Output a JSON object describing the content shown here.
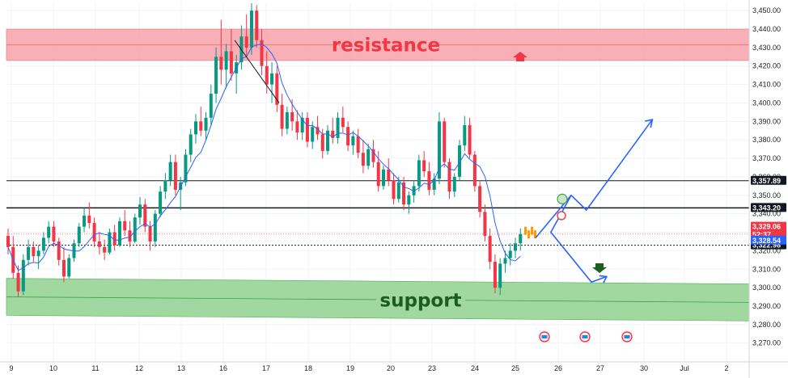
{
  "chart_data": {
    "type": "candlestick",
    "title": "",
    "ylim": [
      3262,
      3454
    ],
    "y_ticks": [
      3270,
      3280,
      3290,
      3300,
      3310,
      3320,
      3330,
      3340,
      3350,
      3360,
      3370,
      3380,
      3390,
      3400,
      3410,
      3420,
      3430,
      3440,
      3450
    ],
    "y_tick_labels": [
      "3,270.00",
      "3,280.00",
      "3,290.00",
      "3,300.00",
      "3,310.00",
      "3,320.00",
      "3,330.00",
      "3,340.00",
      "3,350.00",
      "3,360.00",
      "3,370.00",
      "3,380.00",
      "3,390.00",
      "3,400.00",
      "3,410.00",
      "3,420.00",
      "3,430.00",
      "3,440.00",
      "3,450.00"
    ],
    "x_ticks": [
      "9",
      "10",
      "11",
      "12",
      "13",
      "16",
      "17",
      "18",
      "19",
      "20",
      "23",
      "24",
      "25",
      "26",
      "27",
      "30",
      "Jul",
      "2"
    ],
    "grid": true,
    "colors": {
      "up": "#089981",
      "down": "#f23645",
      "ma": "#2962ff",
      "resistance": "#f7a1a8",
      "support": "#8fd18f"
    },
    "zones": {
      "resistance": {
        "label": "resistance",
        "from": 3423,
        "to": 3440
      },
      "support": {
        "label": "support",
        "left_from": 3285,
        "left_to": 3305,
        "right_from": 3282,
        "right_to": 3302
      }
    },
    "levels": [
      {
        "name": "upper-line",
        "value": 3357.89,
        "label": "3,357.89",
        "style": "solid"
      },
      {
        "name": "key-line",
        "value": 3343.2,
        "label": "3,343.20",
        "style": "solid"
      },
      {
        "name": "dotted-line",
        "value": 3322.98,
        "label": "3,322.98",
        "style": "dotted"
      }
    ],
    "price_tags": [
      {
        "name": "price-red",
        "label": "3,329.06",
        "sub": "52:37",
        "color": "#f23645"
      },
      {
        "name": "price-blue",
        "label": "3,328.54",
        "color": "#2962ff"
      }
    ],
    "candles_start": 3328,
    "candles": [
      [
        3328,
        3332,
        3318,
        3322
      ],
      [
        3322,
        3328,
        3305,
        3308
      ],
      [
        3308,
        3312,
        3295,
        3298
      ],
      [
        3298,
        3318,
        3296,
        3315
      ],
      [
        3315,
        3326,
        3312,
        3322
      ],
      [
        3322,
        3325,
        3314,
        3317
      ],
      [
        3317,
        3323,
        3310,
        3320
      ],
      [
        3320,
        3330,
        3318,
        3327
      ],
      [
        3327,
        3336,
        3324,
        3333
      ],
      [
        3333,
        3336,
        3322,
        3325
      ],
      [
        3325,
        3327,
        3312,
        3315
      ],
      [
        3315,
        3322,
        3303,
        3306
      ],
      [
        3306,
        3318,
        3305,
        3316
      ],
      [
        3316,
        3326,
        3314,
        3324
      ],
      [
        3324,
        3335,
        3322,
        3333
      ],
      [
        3333,
        3343,
        3330,
        3339
      ],
      [
        3339,
        3346,
        3332,
        3335
      ],
      [
        3335,
        3338,
        3322,
        3325
      ],
      [
        3325,
        3330,
        3318,
        3322
      ],
      [
        3322,
        3326,
        3315,
        3319
      ],
      [
        3319,
        3332,
        3318,
        3330
      ],
      [
        3330,
        3334,
        3320,
        3323
      ],
      [
        3323,
        3338,
        3322,
        3336
      ],
      [
        3336,
        3342,
        3328,
        3331
      ],
      [
        3331,
        3336,
        3322,
        3325
      ],
      [
        3325,
        3340,
        3324,
        3338
      ],
      [
        3338,
        3349,
        3334,
        3345
      ],
      [
        3345,
        3348,
        3330,
        3333
      ],
      [
        3333,
        3336,
        3320,
        3325
      ],
      [
        3325,
        3342,
        3322,
        3340
      ],
      [
        3340,
        3355,
        3338,
        3352
      ],
      [
        3352,
        3362,
        3348,
        3358
      ],
      [
        3358,
        3372,
        3355,
        3368
      ],
      [
        3368,
        3372,
        3350,
        3353
      ],
      [
        3353,
        3360,
        3342,
        3357
      ],
      [
        3357,
        3375,
        3355,
        3372
      ],
      [
        3372,
        3386,
        3368,
        3383
      ],
      [
        3383,
        3394,
        3378,
        3390
      ],
      [
        3390,
        3398,
        3382,
        3385
      ],
      [
        3385,
        3395,
        3380,
        3392
      ],
      [
        3392,
        3410,
        3388,
        3405
      ],
      [
        3405,
        3430,
        3400,
        3425
      ],
      [
        3425,
        3445,
        3410,
        3418
      ],
      [
        3418,
        3432,
        3408,
        3428
      ],
      [
        3428,
        3440,
        3412,
        3416
      ],
      [
        3416,
        3426,
        3405,
        3422
      ],
      [
        3422,
        3442,
        3418,
        3436
      ],
      [
        3436,
        3448,
        3425,
        3430
      ],
      [
        3430,
        3454,
        3426,
        3450
      ],
      [
        3450,
        3453,
        3430,
        3434
      ],
      [
        3434,
        3440,
        3415,
        3420
      ],
      [
        3420,
        3428,
        3405,
        3410
      ],
      [
        3410,
        3422,
        3400,
        3416
      ],
      [
        3416,
        3420,
        3395,
        3399
      ],
      [
        3399,
        3405,
        3382,
        3386
      ],
      [
        3386,
        3398,
        3383,
        3395
      ],
      [
        3395,
        3402,
        3385,
        3390
      ],
      [
        3390,
        3396,
        3380,
        3384
      ],
      [
        3384,
        3395,
        3380,
        3392
      ],
      [
        3392,
        3395,
        3376,
        3379
      ],
      [
        3379,
        3390,
        3375,
        3387
      ],
      [
        3387,
        3393,
        3380,
        3383
      ],
      [
        3383,
        3386,
        3370,
        3374
      ],
      [
        3374,
        3388,
        3372,
        3385
      ],
      [
        3385,
        3392,
        3378,
        3381
      ],
      [
        3381,
        3395,
        3378,
        3392
      ],
      [
        3392,
        3398,
        3384,
        3387
      ],
      [
        3387,
        3390,
        3374,
        3377
      ],
      [
        3377,
        3385,
        3372,
        3382
      ],
      [
        3382,
        3386,
        3370,
        3373
      ],
      [
        3373,
        3380,
        3362,
        3366
      ],
      [
        3366,
        3378,
        3364,
        3375
      ],
      [
        3375,
        3380,
        3365,
        3368
      ],
      [
        3368,
        3374,
        3352,
        3355
      ],
      [
        3355,
        3366,
        3353,
        3364
      ],
      [
        3364,
        3370,
        3355,
        3358
      ],
      [
        3358,
        3362,
        3345,
        3348
      ],
      [
        3348,
        3360,
        3346,
        3357
      ],
      [
        3357,
        3360,
        3342,
        3345
      ],
      [
        3345,
        3352,
        3340,
        3350
      ],
      [
        3350,
        3358,
        3346,
        3355
      ],
      [
        3355,
        3372,
        3352,
        3369
      ],
      [
        3369,
        3374,
        3360,
        3363
      ],
      [
        3363,
        3368,
        3350,
        3353
      ],
      [
        3353,
        3362,
        3350,
        3359
      ],
      [
        3359,
        3395,
        3356,
        3390
      ],
      [
        3390,
        3392,
        3365,
        3368
      ],
      [
        3368,
        3370,
        3348,
        3352
      ],
      [
        3352,
        3362,
        3349,
        3360
      ],
      [
        3360,
        3380,
        3358,
        3377
      ],
      [
        3377,
        3393,
        3374,
        3388
      ],
      [
        3388,
        3392,
        3370,
        3372
      ],
      [
        3372,
        3374,
        3352,
        3355
      ],
      [
        3355,
        3358,
        3338,
        3341
      ],
      [
        3341,
        3345,
        3325,
        3328
      ],
      [
        3328,
        3332,
        3310,
        3314
      ],
      [
        3314,
        3318,
        3297,
        3300
      ],
      [
        3300,
        3316,
        3296,
        3313
      ],
      [
        3313,
        3320,
        3308,
        3316
      ],
      [
        3316,
        3324,
        3312,
        3320
      ],
      [
        3320,
        3327,
        3316,
        3324
      ],
      [
        3324,
        3332,
        3320,
        3329
      ]
    ],
    "ma_period": 6,
    "projection_path": [
      {
        "bar_offset": 0,
        "value": 3327
      },
      {
        "bar_offset": 7,
        "value": 3350
      },
      {
        "bar_offset": 10,
        "value": 3342
      },
      {
        "bar_offset": 23,
        "value": 3391
      }
    ],
    "projection_alt": [
      {
        "bar_offset": 7,
        "value": 3350
      },
      {
        "bar_offset": 3,
        "value": 3330
      },
      {
        "bar_offset": 11,
        "value": 3303
      },
      {
        "bar_offset": 14,
        "value": 3306
      }
    ]
  }
}
